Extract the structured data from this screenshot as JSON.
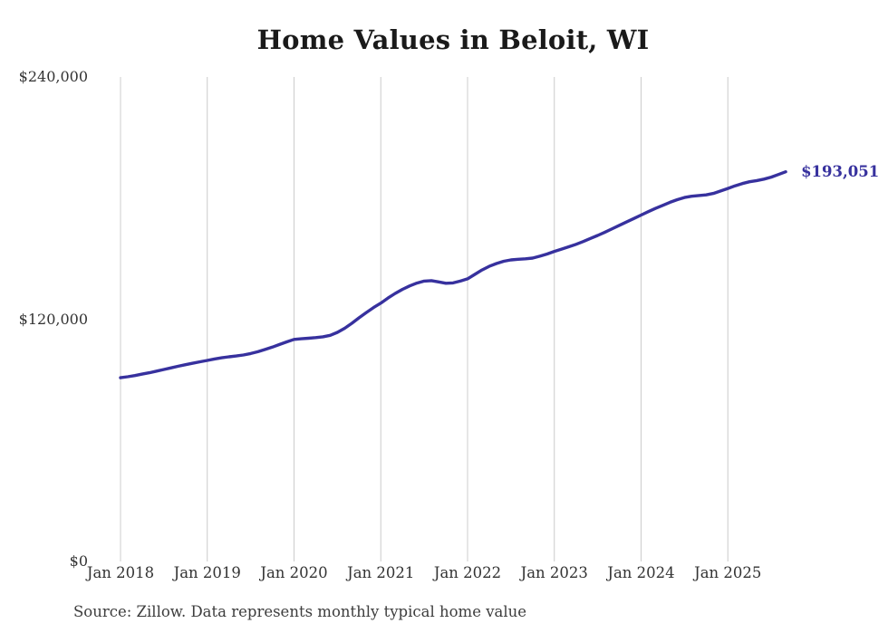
{
  "title": "Home Values in Beloit, WI",
  "end_label": "$193,051",
  "source_note": "Source: Zillow. Data represents monthly typical home value",
  "colors": {
    "line": "#37319e",
    "gridline": "#cccccc",
    "title_text": "#1a1a1a",
    "tick_text": "#333333",
    "source_text": "#3d3d3d",
    "end_label_text": "#37319e"
  },
  "chart_data": {
    "type": "line",
    "title": "Home Values in Beloit, WI",
    "series_name": "Typical home value (USD)",
    "frequency": "monthly",
    "x_start": "2018-01",
    "x_end": "2025-09",
    "x_ticks": [
      "Jan 2018",
      "Jan 2019",
      "Jan 2020",
      "Jan 2021",
      "Jan 2022",
      "Jan 2023",
      "Jan 2024",
      "Jan 2025"
    ],
    "y_ticks": [
      {
        "label": "$240,000",
        "value": 240000
      },
      {
        "label": "$120,000",
        "value": 120000
      },
      {
        "label": "$0",
        "value": 0
      }
    ],
    "ylim": [
      0,
      240000
    ],
    "grid": "vertical-only",
    "legend": "none",
    "latest_value": 193051,
    "values": [
      91000,
      91500,
      92100,
      92800,
      93500,
      94300,
      95100,
      95900,
      96700,
      97500,
      98200,
      98900,
      99600,
      100300,
      100900,
      101400,
      101800,
      102300,
      103000,
      103900,
      105000,
      106200,
      107500,
      108800,
      110000,
      110300,
      110600,
      110900,
      111300,
      112000,
      113500,
      115500,
      118000,
      120700,
      123300,
      125800,
      128000,
      130500,
      132800,
      134800,
      136500,
      137900,
      138900,
      139100,
      138500,
      137800,
      138000,
      138900,
      140000,
      142200,
      144400,
      146200,
      147600,
      148700,
      149400,
      149700,
      149900,
      150300,
      151200,
      152300,
      153600,
      154700,
      155900,
      157100,
      158500,
      160000,
      161500,
      163100,
      164800,
      166500,
      168200,
      169900,
      171600,
      173300,
      174900,
      176400,
      177900,
      179200,
      180300,
      180900,
      181300,
      181600,
      182300,
      183500,
      184800,
      186100,
      187200,
      188100,
      188700,
      189400,
      190400,
      191700,
      193051
    ]
  }
}
